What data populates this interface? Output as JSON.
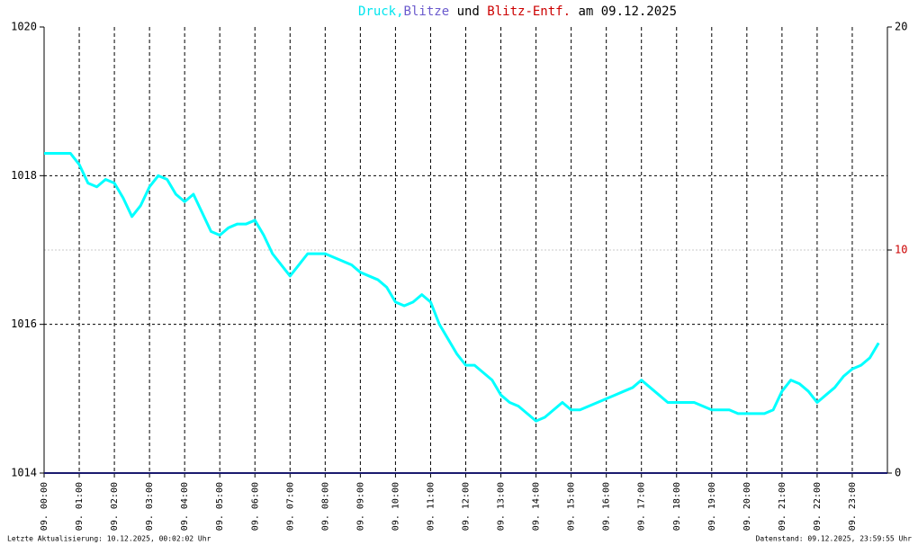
{
  "chart_data": {
    "type": "line",
    "title_parts": [
      {
        "text": "Druck,",
        "color": "#00e5ee"
      },
      {
        "text": "Blitze",
        "color": "#6a5acd"
      },
      {
        "text": "und",
        "color": "#000000"
      },
      {
        "text": "Blitz-Entf.",
        "color": "#cc0000"
      },
      {
        "text": "am 09.12.2025",
        "color": "#000000"
      }
    ],
    "xlim": [
      0,
      24
    ],
    "xticks": [
      {
        "value": 0,
        "label": "09. 00:00"
      },
      {
        "value": 1,
        "label": "09. 01:00"
      },
      {
        "value": 2,
        "label": "09. 02:00"
      },
      {
        "value": 3,
        "label": "09. 03:00"
      },
      {
        "value": 4,
        "label": "09. 04:00"
      },
      {
        "value": 5,
        "label": "09. 05:00"
      },
      {
        "value": 6,
        "label": "09. 06:00"
      },
      {
        "value": 7,
        "label": "09. 07:00"
      },
      {
        "value": 8,
        "label": "09. 08:00"
      },
      {
        "value": 9,
        "label": "09. 09:00"
      },
      {
        "value": 10,
        "label": "09. 10:00"
      },
      {
        "value": 11,
        "label": "09. 11:00"
      },
      {
        "value": 12,
        "label": "09. 12:00"
      },
      {
        "value": 13,
        "label": "09. 13:00"
      },
      {
        "value": 14,
        "label": "09. 14:00"
      },
      {
        "value": 15,
        "label": "09. 15:00"
      },
      {
        "value": 16,
        "label": "09. 16:00"
      },
      {
        "value": 17,
        "label": "09. 17:00"
      },
      {
        "value": 18,
        "label": "09. 18:00"
      },
      {
        "value": 19,
        "label": "09. 19:00"
      },
      {
        "value": 20,
        "label": "09. 20:00"
      },
      {
        "value": 21,
        "label": "09. 21:00"
      },
      {
        "value": 22,
        "label": "09. 22:00"
      },
      {
        "value": 23,
        "label": "09. 23:00"
      }
    ],
    "ylim": [
      1014,
      1020
    ],
    "yticks": [
      1014,
      1016,
      1018,
      1020
    ],
    "y2lim": [
      0,
      20
    ],
    "y2ticks": [
      0,
      10,
      20
    ],
    "y2tick_colors": [
      "#000000",
      "#cc0000",
      "#000000"
    ],
    "grid": true,
    "series": [
      {
        "color": "#00ffff",
        "x": [
          0,
          0.25,
          0.5,
          0.75,
          1,
          1.25,
          1.5,
          1.75,
          2,
          2.25,
          2.5,
          2.75,
          3,
          3.25,
          3.5,
          3.75,
          4,
          4.25,
          4.5,
          4.75,
          5,
          5.25,
          5.5,
          5.75,
          6,
          6.25,
          6.5,
          6.75,
          7,
          7.25,
          7.5,
          7.75,
          8,
          8.25,
          8.5,
          8.75,
          9,
          9.25,
          9.5,
          9.75,
          10,
          10.25,
          10.5,
          10.75,
          11,
          11.25,
          11.5,
          11.75,
          12,
          12.25,
          12.5,
          12.75,
          13,
          13.25,
          13.5,
          13.75,
          14,
          14.25,
          14.5,
          14.75,
          15,
          15.25,
          15.5,
          15.75,
          16,
          16.25,
          16.5,
          16.75,
          17,
          17.25,
          17.5,
          17.75,
          18,
          18.25,
          18.5,
          18.75,
          19,
          19.25,
          19.5,
          19.75,
          20,
          20.25,
          20.5,
          20.75,
          21,
          21.25,
          21.5,
          21.75,
          22,
          22.25,
          22.5,
          22.75,
          23,
          23.25,
          23.5,
          23.75
        ],
        "values": [
          1018.3,
          1018.3,
          1018.3,
          1018.3,
          1018.15,
          1017.9,
          1017.85,
          1017.95,
          1017.9,
          1017.7,
          1017.45,
          1017.6,
          1017.85,
          1018.0,
          1017.95,
          1017.75,
          1017.65,
          1017.75,
          1017.5,
          1017.25,
          1017.2,
          1017.3,
          1017.35,
          1017.35,
          1017.4,
          1017.2,
          1016.95,
          1016.8,
          1016.65,
          1016.8,
          1016.95,
          1016.95,
          1016.95,
          1016.9,
          1016.85,
          1016.8,
          1016.7,
          1016.65,
          1016.6,
          1016.5,
          1016.3,
          1016.25,
          1016.3,
          1016.4,
          1016.3,
          1016.0,
          1015.8,
          1015.6,
          1015.45,
          1015.45,
          1015.35,
          1015.25,
          1015.05,
          1014.95,
          1014.9,
          1014.8,
          1014.7,
          1014.75,
          1014.85,
          1014.95,
          1014.85,
          1014.85,
          1014.9,
          1014.95,
          1015.0,
          1015.05,
          1015.1,
          1015.15,
          1015.25,
          1015.15,
          1015.05,
          1014.95,
          1014.95,
          1014.95,
          1014.95,
          1014.9,
          1014.85,
          1014.85,
          1014.85,
          1014.8,
          1014.8,
          1014.8,
          1014.8,
          1014.85,
          1015.1,
          1015.25,
          1015.2,
          1015.1,
          1014.95,
          1015.05,
          1015.15,
          1015.3,
          1015.4,
          1015.45,
          1015.55,
          1015.75
        ]
      },
      {
        "color": "#1a1a6e",
        "axis": "y2",
        "x": [
          0,
          24
        ],
        "values": [
          0,
          0
        ]
      }
    ],
    "footer_left": "Letzte Aktualisierung: 10.12.2025, 00:02:02 Uhr",
    "footer_right": "Datenstand: 09.12.2025, 23:59:55 Uhr"
  }
}
